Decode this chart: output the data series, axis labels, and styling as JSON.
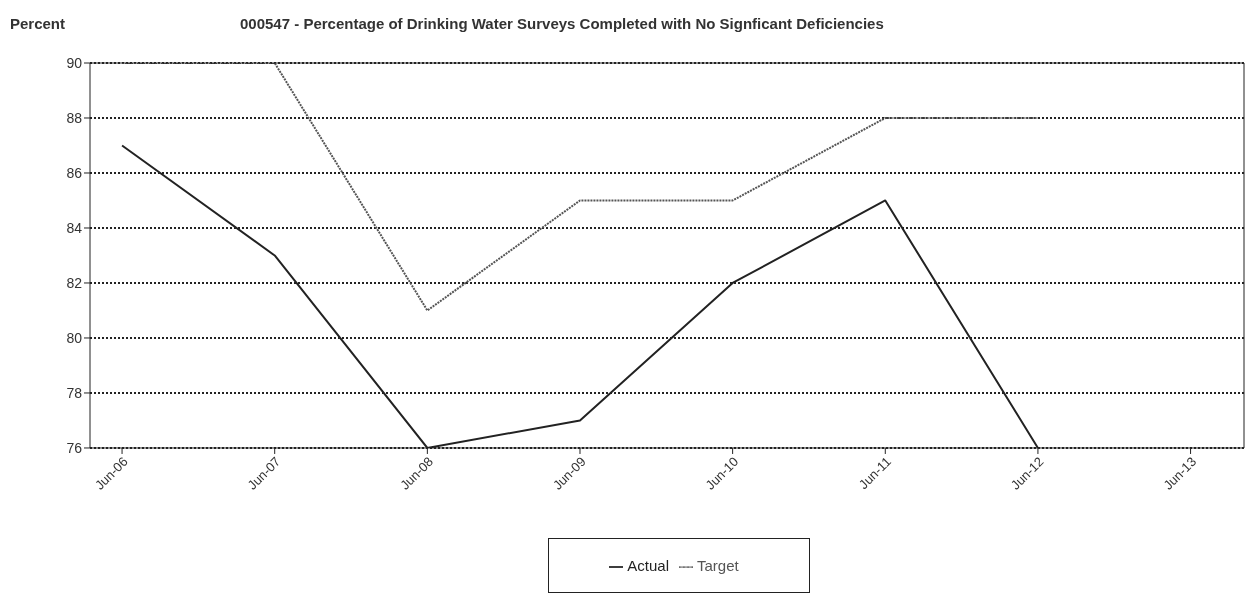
{
  "chart_data": {
    "type": "line",
    "title": "000547 - Percentage of Drinking Water Surveys Completed with No Signficant Deficiencies",
    "ylabel": "Percent",
    "categories": [
      "Jun-06",
      "Jun-07",
      "Jun-08",
      "Jun-09",
      "Jun-10",
      "Jun-11",
      "Jun-12",
      "Jun-13"
    ],
    "series": [
      {
        "name": "Target",
        "color": "#555555",
        "line_style": "dotted",
        "values": [
          90,
          90,
          81,
          85,
          85,
          88,
          88,
          null
        ]
      },
      {
        "name": "Actual",
        "color": "#222222",
        "line_style": "solid",
        "values": [
          87,
          83,
          76,
          77,
          82,
          85,
          76,
          null
        ]
      }
    ],
    "ylim": [
      76,
      90
    ],
    "yticks": [
      76,
      78,
      80,
      82,
      84,
      86,
      88,
      90
    ],
    "grid": "y",
    "legend": "bottom",
    "marker": "none"
  }
}
